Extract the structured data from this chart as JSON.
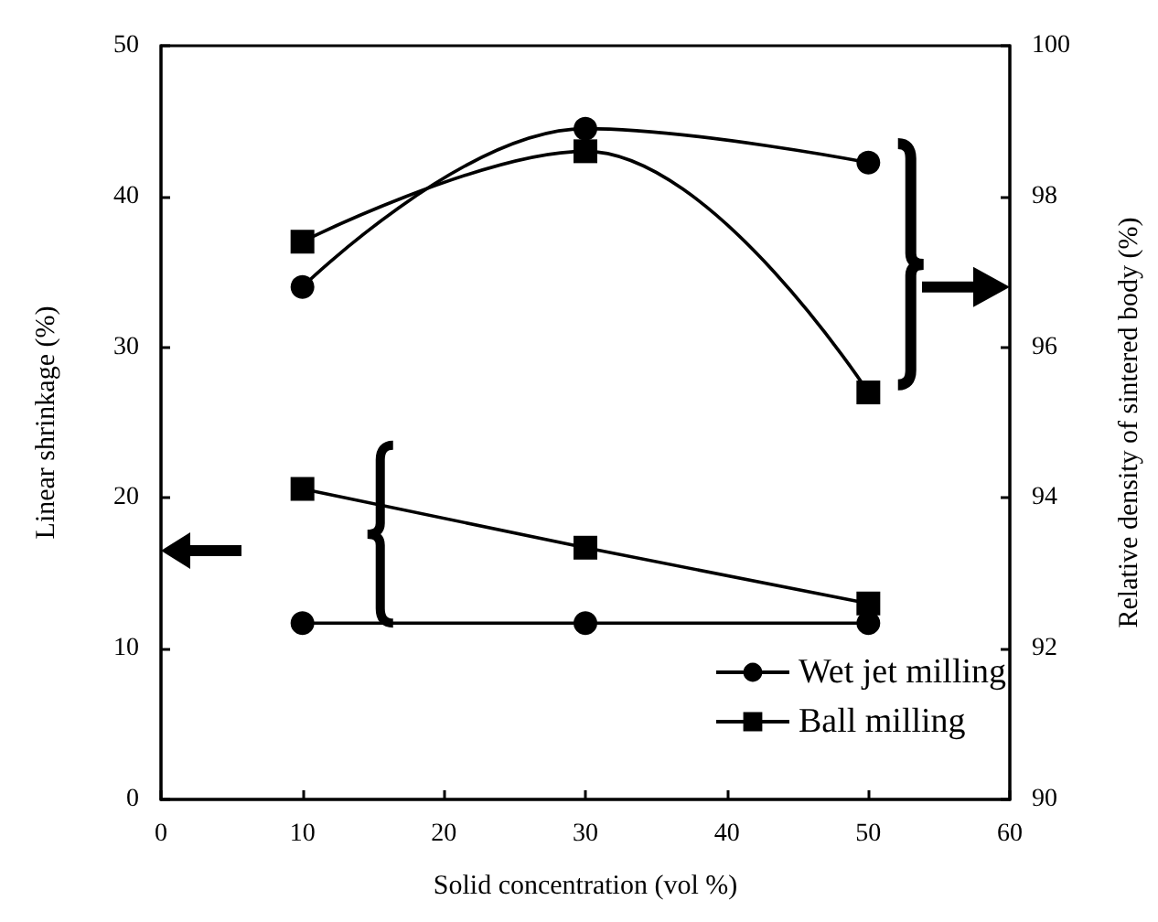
{
  "chart_data": {
    "type": "line",
    "xlabel": "Solid concentration (vol %)",
    "ylabel": "Linear shrinkage (%)",
    "y2label": "Relative density of sintered body (%)",
    "x": [
      10,
      30,
      50
    ],
    "xlim": [
      0,
      60
    ],
    "xticks": [
      0,
      10,
      20,
      30,
      40,
      50,
      60
    ],
    "ylim": [
      0,
      50
    ],
    "yticks": [
      0,
      10,
      20,
      30,
      40,
      50
    ],
    "y2lim": [
      90,
      100
    ],
    "y2ticks": [
      90,
      92,
      94,
      96,
      98,
      100
    ],
    "series": [
      {
        "name": "Wet jet milling",
        "color": "#000000",
        "marker": "circle",
        "values": [
          11.7,
          11.7,
          11.7
        ]
      },
      {
        "name": "Ball milling",
        "color": "#000000",
        "marker": "square",
        "values": [
          20.6,
          16.7,
          13.0
        ]
      },
      {
        "color": "#000000",
        "marker": "circle",
        "axis": "y2",
        "values": [
          96.8,
          98.9,
          98.45
        ]
      },
      {
        "color": "#000000",
        "marker": "square",
        "axis": "y2",
        "values": [
          97.4,
          98.6,
          95.4
        ]
      }
    ],
    "legend": "bottom right",
    "grid": false
  }
}
